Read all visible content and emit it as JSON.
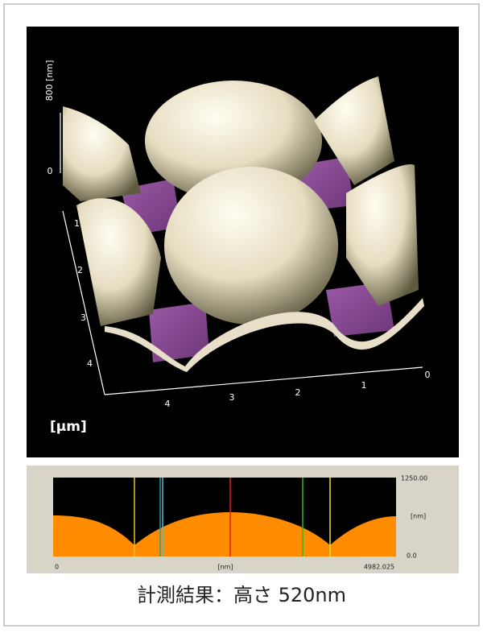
{
  "surface_view": {
    "z_axis_label": "800 [nm]",
    "z_ticks": [
      "0"
    ],
    "y_ticks": [
      "1",
      "2",
      "3",
      "4"
    ],
    "x_ticks": [
      "4",
      "3",
      "2",
      "1",
      "0"
    ],
    "unit": "[μm]"
  },
  "profile": {
    "x_start": "0",
    "x_end": "4982.025",
    "x_unit": "[nm]",
    "y_max": "1250.00",
    "y_min": "0.0",
    "y_unit": "[nm]"
  },
  "caption": "計測結果：高さ 520nm"
}
